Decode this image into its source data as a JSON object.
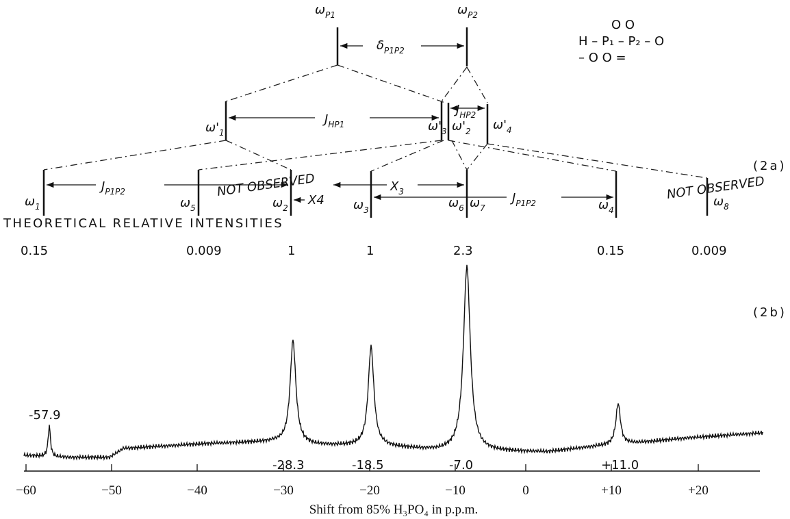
{
  "splitting": {
    "nuclei": [
      {
        "base": "ω",
        "sub": "P1"
      },
      {
        "base": "ω",
        "sub": "P2"
      }
    ],
    "shift": {
      "base": "δ",
      "sub": "P1P2"
    },
    "formula": [
      "O   O",
      "H – P₁ – P₂ – O",
      "– O   O ="
    ],
    "level2": [
      {
        "base": "ω'",
        "sub": "1"
      },
      {
        "base": "ω'",
        "sub": "3"
      },
      {
        "base": "ω'",
        "sub": "2"
      },
      {
        "base": "ω'",
        "sub": "4"
      }
    ],
    "level2_couplings": [
      {
        "base": "J",
        "sub": "HP1"
      },
      {
        "base": "J",
        "sub": "HP2"
      }
    ],
    "level3": [
      {
        "base": "ω",
        "sub": "1"
      },
      {
        "base": "ω",
        "sub": "5"
      },
      {
        "base": "ω",
        "sub": "2"
      },
      {
        "base": "ω",
        "sub": "3"
      },
      {
        "base": "ω",
        "sub": "6"
      },
      {
        "base": "ω",
        "sub": "7"
      },
      {
        "base": "ω",
        "sub": "4"
      },
      {
        "base": "ω",
        "sub": "8"
      }
    ],
    "level3_couplings": [
      {
        "base": "J",
        "sub": "P1P2"
      },
      {
        "base": "X4"
      },
      {
        "base": "X",
        "sub": "3"
      },
      {
        "base": "J",
        "sub": "P1P2"
      }
    ],
    "not_observed": [
      "NOT OBSERVED",
      "NOT OBSERVED"
    ],
    "label": "(2a)"
  },
  "intensities": {
    "title": "THEORETICAL RELATIVE INTENSITIES",
    "values": [
      0.15,
      0.009,
      1,
      1,
      2.3,
      0.15,
      0.009
    ]
  },
  "spectrum": {
    "label": "(2b)",
    "peaks": [
      "-57.9",
      "-28.3",
      "-18.5",
      "-7.0",
      "+11.0"
    ],
    "ticks": [
      "−60",
      "−50",
      "−40",
      "−30",
      "−20",
      "−10",
      "0",
      "+10",
      "+20"
    ],
    "axis_title": "Shift from 85% H₃PO₄ in p.p.m."
  }
}
